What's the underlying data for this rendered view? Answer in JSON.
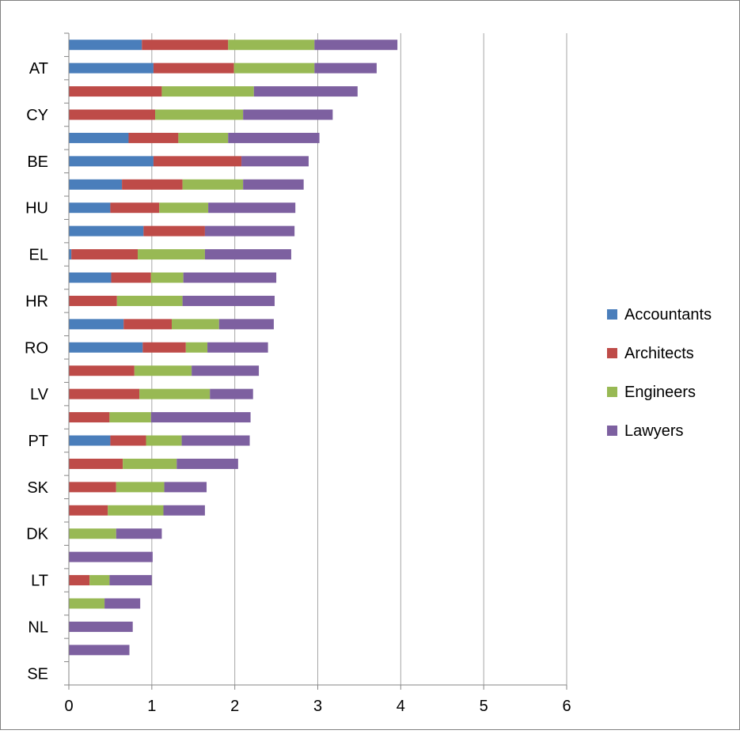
{
  "colors": {
    "Accountants": "#4a7ebb",
    "Architects": "#be4b48",
    "Engineers": "#98b954",
    "Lawyers": "#7d60a0",
    "gridline": "#a6a6a6",
    "axis": "#868686",
    "frame": "#808080"
  },
  "chart_data": {
    "type": "bar",
    "orientation": "horizontal",
    "stacked": true,
    "title": "",
    "xlabel": "",
    "ylabel": "",
    "xlim": [
      0,
      6
    ],
    "x_ticks": [
      "0",
      "1",
      "2",
      "3",
      "4",
      "5",
      "6"
    ],
    "grid": "vertical major gridlines",
    "legend": "right",
    "categories_bottom_to_top": [
      "SE",
      "",
      "NL",
      "",
      "LT",
      "",
      "DK",
      "",
      "SK",
      "",
      "PT",
      "",
      "LV",
      "",
      "RO",
      "",
      "HR",
      "",
      "EL",
      "",
      "HU",
      "",
      "BE",
      "",
      "CY",
      "",
      "AT",
      ""
    ],
    "series": [
      {
        "name": "Accountants",
        "values": [
          0,
          0,
          0,
          0,
          0,
          0,
          0,
          0,
          0,
          0,
          0.5,
          0,
          0,
          0,
          0.89,
          0.66,
          0,
          0.51,
          0.03,
          0.9,
          0.5,
          0.64,
          1.02,
          0.72,
          0,
          0,
          1.02,
          0.88
        ]
      },
      {
        "name": "Architects",
        "values": [
          0,
          0,
          0,
          0,
          0.25,
          0,
          0,
          0.47,
          0.57,
          0.65,
          0.43,
          0.49,
          0.85,
          0.79,
          0.52,
          0.58,
          0.58,
          0.48,
          0.8,
          0.74,
          0.59,
          0.73,
          1.06,
          0.6,
          1.04,
          1.12,
          0.97,
          1.04
        ]
      },
      {
        "name": "Engineers",
        "values": [
          0,
          0,
          0,
          0.43,
          0.24,
          0,
          0.57,
          0.67,
          0.58,
          0.65,
          0.43,
          0.5,
          0.85,
          0.69,
          0.26,
          0.57,
          0.79,
          0.39,
          0.81,
          0,
          0.59,
          0.73,
          0,
          0.6,
          1.06,
          1.11,
          0.97,
          1.04
        ]
      },
      {
        "name": "Lawyers",
        "values": [
          0,
          0.73,
          0.77,
          0.43,
          0.51,
          1.01,
          0.55,
          0.5,
          0.51,
          0.74,
          0.82,
          1.2,
          0.52,
          0.81,
          0.73,
          0.66,
          1.11,
          1.12,
          1.04,
          1.08,
          1.05,
          0.73,
          0.81,
          1.1,
          1.08,
          1.25,
          0.75,
          1.0
        ]
      }
    ]
  }
}
